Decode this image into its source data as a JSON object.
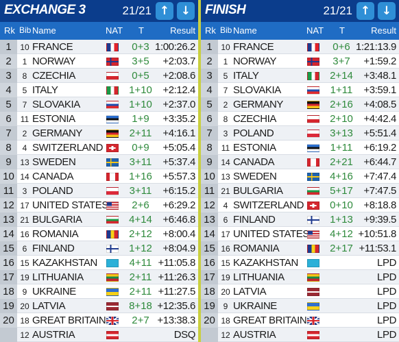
{
  "colors": {
    "background": "#c9cf3f",
    "title_bar": "#0b3d8c",
    "column_header": "#1f6cc4",
    "button": "#2f8fd6",
    "penalty_text": "#2f8a3c"
  },
  "columns": {
    "rk": "Rk",
    "bib": "Bib",
    "name": "Name",
    "nat": "NAT",
    "t": "T",
    "result": "Result"
  },
  "left": {
    "title": "EXCHANGE 3",
    "page": "21/21",
    "up_icon": "arrow-up-icon",
    "down_icon": "arrow-down-icon",
    "rows": [
      {
        "rk": "1",
        "bib": "10",
        "name": "FRANCE",
        "flag": "france",
        "t": "0+3",
        "result": "1:00:26.2"
      },
      {
        "rk": "2",
        "bib": "1",
        "name": "NORWAY",
        "flag": "norway",
        "t": "3+5",
        "result": "+2:03.7"
      },
      {
        "rk": "3",
        "bib": "8",
        "name": "CZECHIA",
        "flag": "czechia",
        "t": "0+5",
        "result": "+2:08.6"
      },
      {
        "rk": "4",
        "bib": "5",
        "name": "ITALY",
        "flag": "italy",
        "t": "1+10",
        "result": "+2:12.4"
      },
      {
        "rk": "5",
        "bib": "7",
        "name": "SLOVAKIA",
        "flag": "slovakia",
        "t": "1+10",
        "result": "+2:37.0"
      },
      {
        "rk": "6",
        "bib": "11",
        "name": "ESTONIA",
        "flag": "estonia",
        "t": "1+9",
        "result": "+3:35.2"
      },
      {
        "rk": "7",
        "bib": "2",
        "name": "GERMANY",
        "flag": "germany",
        "t": "2+11",
        "result": "+4:16.1"
      },
      {
        "rk": "8",
        "bib": "4",
        "name": "SWITZERLAND",
        "flag": "switzerland",
        "t": "0+9",
        "result": "+5:05.4"
      },
      {
        "rk": "9",
        "bib": "13",
        "name": "SWEDEN",
        "flag": "sweden",
        "t": "3+11",
        "result": "+5:37.4"
      },
      {
        "rk": "10",
        "bib": "14",
        "name": "CANADA",
        "flag": "canada",
        "t": "1+16",
        "result": "+5:57.3"
      },
      {
        "rk": "11",
        "bib": "3",
        "name": "POLAND",
        "flag": "poland",
        "t": "3+11",
        "result": "+6:15.2"
      },
      {
        "rk": "12",
        "bib": "17",
        "name": "UNITED STATES",
        "flag": "usa",
        "t": "2+6",
        "result": "+6:29.2"
      },
      {
        "rk": "13",
        "bib": "21",
        "name": "BULGARIA",
        "flag": "bulgaria",
        "t": "4+14",
        "result": "+6:46.8"
      },
      {
        "rk": "14",
        "bib": "16",
        "name": "ROMANIA",
        "flag": "romania",
        "t": "2+12",
        "result": "+8:00.4"
      },
      {
        "rk": "15",
        "bib": "6",
        "name": "FINLAND",
        "flag": "finland",
        "t": "1+12",
        "result": "+8:04.9"
      },
      {
        "rk": "16",
        "bib": "15",
        "name": "KAZAKHSTAN",
        "flag": "kazakhstan",
        "t": "4+11",
        "result": "+11:05.8"
      },
      {
        "rk": "17",
        "bib": "19",
        "name": "LITHUANIA",
        "flag": "lithuania",
        "t": "2+11",
        "result": "+11:26.3"
      },
      {
        "rk": "18",
        "bib": "9",
        "name": "UKRAINE",
        "flag": "ukraine",
        "t": "2+11",
        "result": "+11:27.5"
      },
      {
        "rk": "19",
        "bib": "20",
        "name": "LATVIA",
        "flag": "latvia",
        "t": "8+18",
        "result": "+12:35.6"
      },
      {
        "rk": "20",
        "bib": "18",
        "name": "GREAT BRITAIN",
        "flag": "great-britain",
        "t": "2+7",
        "result": "+13:38.3"
      },
      {
        "rk": "",
        "bib": "12",
        "name": "AUSTRIA",
        "flag": "austria",
        "t": "",
        "result": "DSQ"
      }
    ]
  },
  "right": {
    "title": "FINISH",
    "page": "21/21",
    "up_icon": "arrow-up-icon",
    "down_icon": "arrow-down-icon",
    "rows": [
      {
        "rk": "1",
        "bib": "10",
        "name": "FRANCE",
        "flag": "france",
        "t": "0+6",
        "result": "1:21:13.9"
      },
      {
        "rk": "2",
        "bib": "1",
        "name": "NORWAY",
        "flag": "norway",
        "t": "3+7",
        "result": "+1:59.2"
      },
      {
        "rk": "3",
        "bib": "5",
        "name": "ITALY",
        "flag": "italy",
        "t": "2+14",
        "result": "+3:48.1"
      },
      {
        "rk": "4",
        "bib": "7",
        "name": "SLOVAKIA",
        "flag": "slovakia",
        "t": "1+11",
        "result": "+3:59.1"
      },
      {
        "rk": "5",
        "bib": "2",
        "name": "GERMANY",
        "flag": "germany",
        "t": "2+16",
        "result": "+4:08.5"
      },
      {
        "rk": "6",
        "bib": "8",
        "name": "CZECHIA",
        "flag": "czechia",
        "t": "2+10",
        "result": "+4:42.4"
      },
      {
        "rk": "7",
        "bib": "3",
        "name": "POLAND",
        "flag": "poland",
        "t": "3+13",
        "result": "+5:51.4"
      },
      {
        "rk": "8",
        "bib": "11",
        "name": "ESTONIA",
        "flag": "estonia",
        "t": "1+11",
        "result": "+6:19.2"
      },
      {
        "rk": "9",
        "bib": "14",
        "name": "CANADA",
        "flag": "canada",
        "t": "2+21",
        "result": "+6:44.7"
      },
      {
        "rk": "10",
        "bib": "13",
        "name": "SWEDEN",
        "flag": "sweden",
        "t": "4+16",
        "result": "+7:47.4"
      },
      {
        "rk": "11",
        "bib": "21",
        "name": "BULGARIA",
        "flag": "bulgaria",
        "t": "5+17",
        "result": "+7:47.5"
      },
      {
        "rk": "12",
        "bib": "4",
        "name": "SWITZERLAND",
        "flag": "switzerland",
        "t": "0+10",
        "result": "+8:18.8"
      },
      {
        "rk": "13",
        "bib": "6",
        "name": "FINLAND",
        "flag": "finland",
        "t": "1+13",
        "result": "+9:39.5"
      },
      {
        "rk": "14",
        "bib": "17",
        "name": "UNITED STATES",
        "flag": "usa",
        "t": "4+12",
        "result": "+10:51.8"
      },
      {
        "rk": "15",
        "bib": "16",
        "name": "ROMANIA",
        "flag": "romania",
        "t": "2+17",
        "result": "+11:53.1"
      },
      {
        "rk": "16",
        "bib": "15",
        "name": "KAZAKHSTAN",
        "flag": "kazakhstan",
        "t": "",
        "result": "LPD"
      },
      {
        "rk": "17",
        "bib": "19",
        "name": "LITHUANIA",
        "flag": "lithuania",
        "t": "",
        "result": "LPD"
      },
      {
        "rk": "18",
        "bib": "20",
        "name": "LATVIA",
        "flag": "latvia",
        "t": "",
        "result": "LPD"
      },
      {
        "rk": "19",
        "bib": "9",
        "name": "UKRAINE",
        "flag": "ukraine",
        "t": "",
        "result": "LPD"
      },
      {
        "rk": "20",
        "bib": "18",
        "name": "GREAT BRITAIN",
        "flag": "great-britain",
        "t": "",
        "result": "LPD"
      },
      {
        "rk": "",
        "bib": "12",
        "name": "AUSTRIA",
        "flag": "austria",
        "t": "",
        "result": "LPD"
      }
    ]
  }
}
